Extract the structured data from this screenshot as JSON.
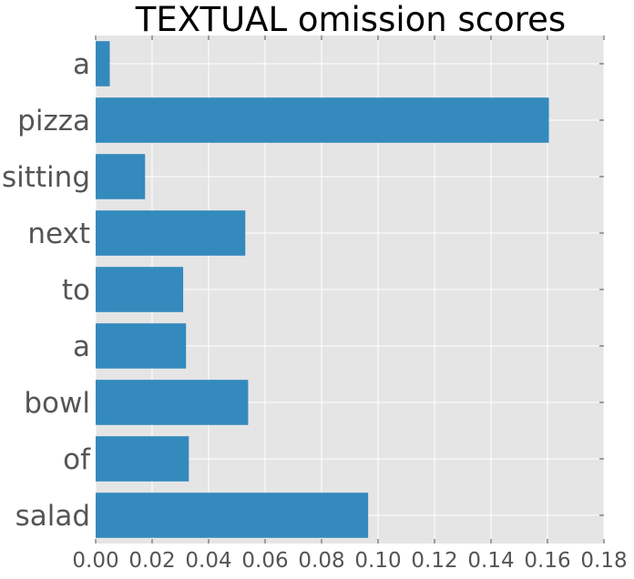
{
  "chart_data": {
    "type": "bar",
    "orientation": "horizontal",
    "title": "TEXTUAL omission scores",
    "xlabel": "",
    "ylabel": "",
    "categories": [
      "a",
      "pizza",
      "sitting",
      "next",
      "to",
      "a",
      "bowl",
      "of",
      "salad"
    ],
    "values": [
      0.005,
      0.1605,
      0.0175,
      0.053,
      0.031,
      0.032,
      0.054,
      0.033,
      0.0965
    ],
    "xlim": [
      0,
      0.18
    ],
    "xticks": [
      "0.00",
      "0.02",
      "0.04",
      "0.06",
      "0.08",
      "0.10",
      "0.12",
      "0.14",
      "0.16",
      "0.18"
    ],
    "grid": true,
    "legend": "none",
    "colors": {
      "bar": "#348ABD",
      "plot_background": "#E5E5E5",
      "grid": "#FFFFFF",
      "text": "#555555"
    }
  }
}
